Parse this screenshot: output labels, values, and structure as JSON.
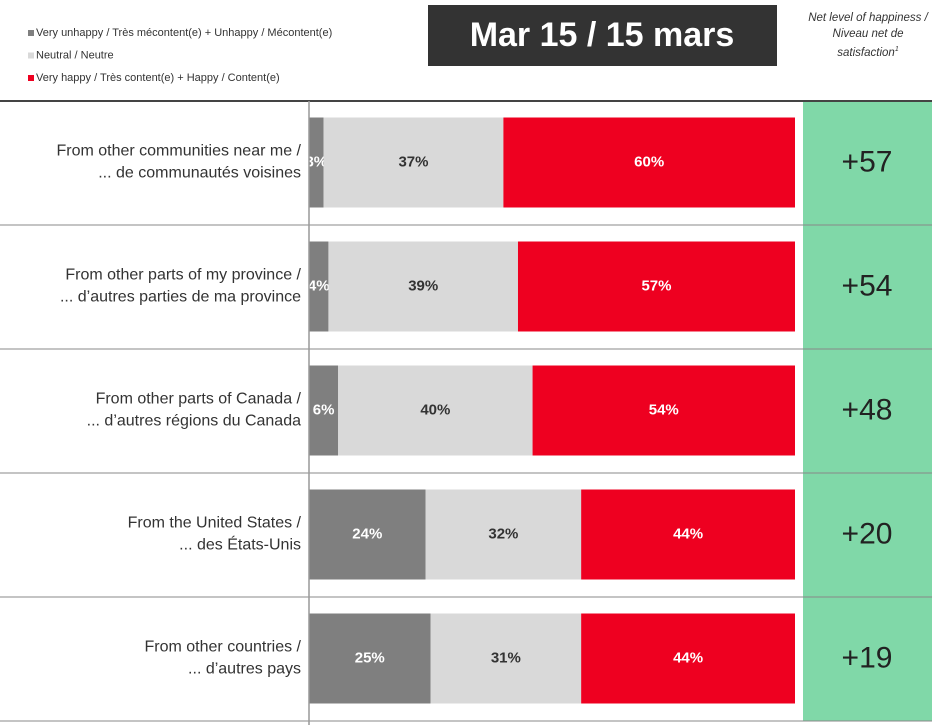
{
  "chart_data": {
    "type": "bar",
    "orientation": "horizontal",
    "stacked": true,
    "title": "Mar 15 / 15 mars",
    "categories": [
      [
        "From other communities near me /",
        "... de communautés voisines"
      ],
      [
        "From other parts of my province /",
        "... d’autres parties de ma province"
      ],
      [
        "From other parts of Canada /",
        "... d’autres régions du Canada"
      ],
      [
        "From the United States /",
        "... des États-Unis"
      ],
      [
        "From other countries /",
        "... d’autres pays"
      ]
    ],
    "xlim": [
      0,
      100
    ],
    "series": [
      {
        "name": "Very unhappy / Très mécontent(e) + Unhappy / Mécontent(e)",
        "color": "#7f7f7f",
        "label_color": "#ffffff",
        "values": [
          3,
          4,
          6,
          24,
          25
        ],
        "value_labels": [
          "3%",
          "4%",
          "6%",
          "24%",
          "25%"
        ]
      },
      {
        "name": "Neutral / Neutre",
        "color": "#d9d9d9",
        "label_color": "#333333",
        "values": [
          37,
          39,
          40,
          32,
          31
        ],
        "value_labels": [
          "37%",
          "39%",
          "40%",
          "32%",
          "31%"
        ]
      },
      {
        "name": "Very happy / Très content(e) + Happy / Content(e)",
        "color": "#ee0020",
        "label_color": "#ffffff",
        "values": [
          60,
          57,
          54,
          44,
          44
        ],
        "value_labels": [
          "60%",
          "57%",
          "54%",
          "44%",
          "44%"
        ]
      }
    ],
    "net": {
      "title": "Net level of happiness / Niveau net de satisfaction",
      "footnote": "1",
      "color": "#80d8a8",
      "values": [
        57,
        54,
        48,
        20,
        19
      ],
      "value_labels": [
        "+57",
        "+54",
        "+48",
        "+20",
        "+19"
      ]
    }
  }
}
